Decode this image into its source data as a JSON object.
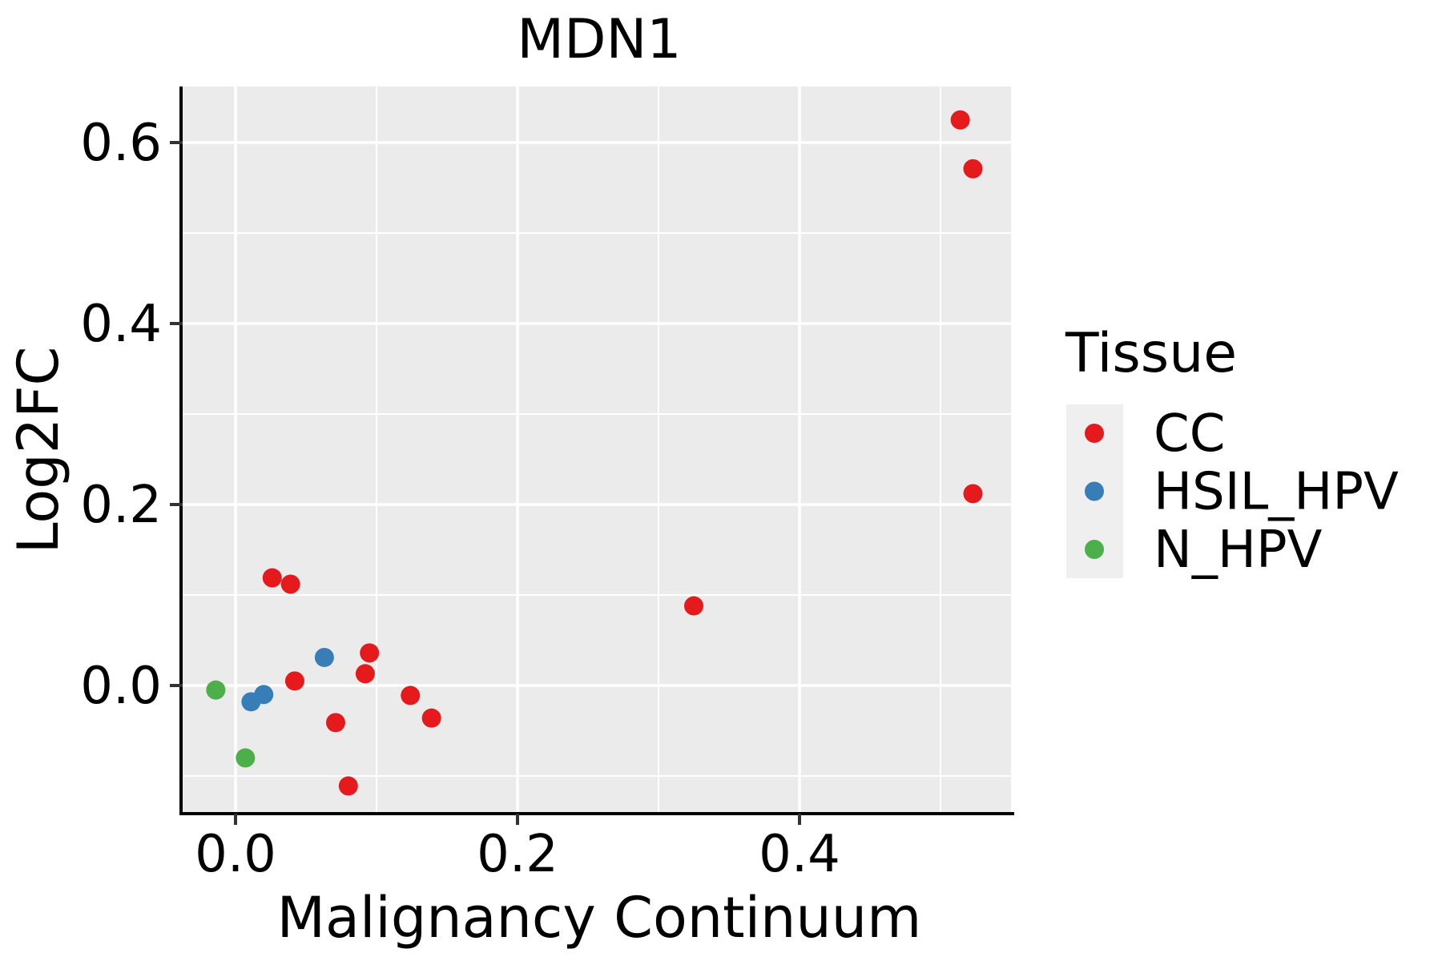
{
  "chart_data": {
    "type": "scatter",
    "title": "MDN1",
    "xlabel": "Malignancy Continuum",
    "ylabel": "Log2FC",
    "legend_title": "Tissue",
    "legend_position": "right",
    "grid": "on",
    "panel_bg": "#EBEBEB",
    "grid_color": "#FFFFFF",
    "legend_key_bg": "#EFEFEF",
    "tick_color": "#333333",
    "axis_line_color": "#000000",
    "point_radius": 12,
    "xlim": [
      -0.0375,
      0.55
    ],
    "ylim": [
      -0.1416,
      0.658
    ],
    "x_ticks": {
      "values": [
        0.0,
        0.2,
        0.4
      ],
      "labels": [
        "0.0",
        "0.2",
        "0.4"
      ]
    },
    "y_ticks": {
      "values": [
        0.0,
        0.2,
        0.4,
        0.6
      ],
      "labels": [
        "0.0",
        "0.2",
        "0.4",
        "0.6"
      ]
    },
    "x_minor": [
      0.1,
      0.3,
      0.5
    ],
    "y_minor": [
      -0.1,
      0.1,
      0.3,
      0.5
    ],
    "series": [
      {
        "name": "CC",
        "color": "#E41A1C",
        "points": [
          [
            0.026,
            0.119
          ],
          [
            0.039,
            0.112
          ],
          [
            0.042,
            0.005
          ],
          [
            0.092,
            0.013
          ],
          [
            0.095,
            0.036
          ],
          [
            0.071,
            -0.041
          ],
          [
            0.124,
            -0.011
          ],
          [
            0.139,
            -0.036
          ],
          [
            0.08,
            -0.111
          ],
          [
            0.325,
            0.088
          ],
          [
            0.514,
            0.625
          ],
          [
            0.523,
            0.571
          ],
          [
            0.523,
            0.212
          ]
        ]
      },
      {
        "name": "HSIL_HPV",
        "color": "#377EB8",
        "points": [
          [
            0.011,
            -0.018
          ],
          [
            0.02,
            -0.01
          ],
          [
            0.063,
            0.031
          ]
        ]
      },
      {
        "name": "N_HPV",
        "color": "#4DAF4A",
        "points": [
          [
            -0.014,
            -0.005
          ],
          [
            0.007,
            -0.08
          ]
        ]
      }
    ]
  }
}
